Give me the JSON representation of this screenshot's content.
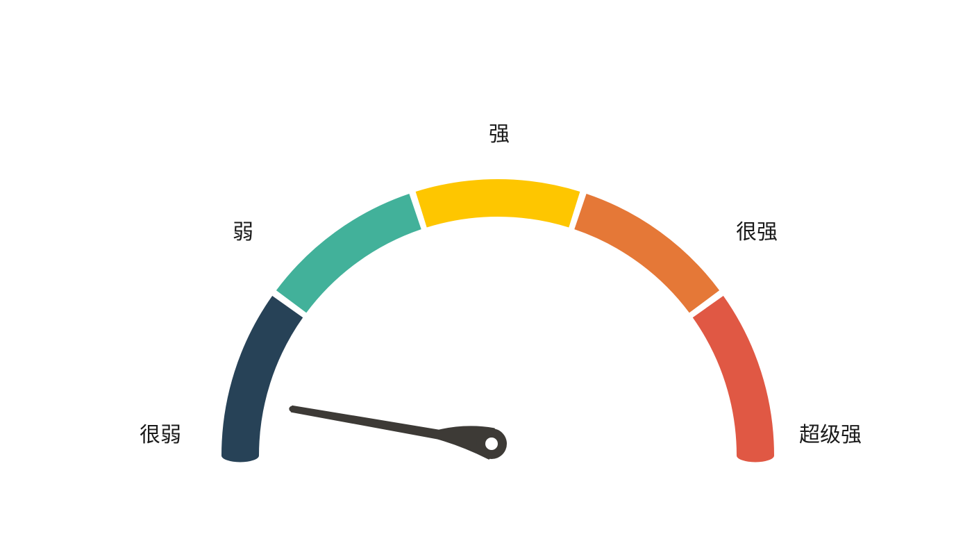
{
  "chart_data": {
    "type": "gauge",
    "segments": [
      {
        "label": "很弱",
        "color": "#274257"
      },
      {
        "label": "弱",
        "color": "#42b19a"
      },
      {
        "label": "强",
        "color": "#fec600"
      },
      {
        "label": "很强",
        "color": "#e57837"
      },
      {
        "label": "超级强",
        "color": "#e05844"
      }
    ],
    "needle": {
      "position_fraction": 0.055,
      "color": "#3d3a36"
    }
  }
}
